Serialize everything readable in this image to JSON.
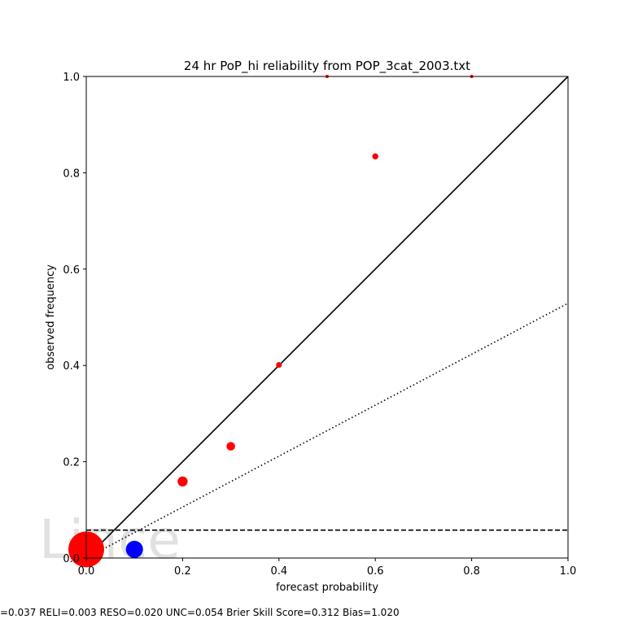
{
  "chart_data": {
    "type": "scatter",
    "title": "24 hr PoP_hi reliability from POP_3cat_2003.txt",
    "xlabel": "forecast probability",
    "ylabel": "observed frequency",
    "xlim": [
      0.0,
      1.0
    ],
    "ylim": [
      0.0,
      1.0
    ],
    "xticks": [
      "0.0",
      "0.2",
      "0.4",
      "0.6",
      "0.8",
      "1.0"
    ],
    "yticks": [
      "0.0",
      "0.2",
      "0.4",
      "0.6",
      "0.8",
      "1.0"
    ],
    "grid": false,
    "legend": "none",
    "reference_lines": {
      "perfect_reliability": {
        "x": [
          0.0,
          1.0
        ],
        "y": [
          0.0,
          1.0
        ],
        "style": "solid"
      },
      "no_skill": {
        "x": [
          0.0,
          1.0
        ],
        "y": [
          0.0,
          0.529
        ],
        "style": "dotted"
      },
      "climatology": {
        "y": 0.058,
        "style": "dashed"
      }
    },
    "series": [
      {
        "color": "#ff0000",
        "points": [
          {
            "x": 0.0,
            "y": 0.018,
            "relative_size": 1.0
          },
          {
            "x": 0.2,
            "y": 0.159,
            "relative_size": 0.28
          },
          {
            "x": 0.3,
            "y": 0.232,
            "relative_size": 0.24
          },
          {
            "x": 0.4,
            "y": 0.401,
            "relative_size": 0.16
          },
          {
            "x": 0.5,
            "y": 1.0,
            "relative_size": 0.09
          },
          {
            "x": 0.6,
            "y": 0.834,
            "relative_size": 0.17
          },
          {
            "x": 0.8,
            "y": 1.0,
            "relative_size": 0.09
          }
        ]
      },
      {
        "color": "#0000ff",
        "points": [
          {
            "x": 0.1,
            "y": 0.018,
            "relative_size": 0.48
          }
        ]
      }
    ],
    "footer": "=0.037   RELI=0.003   RESO=0.020 UNC=0.054   Brier Skill Score=0.312   Bias=1.020",
    "watermark": "Lince"
  }
}
